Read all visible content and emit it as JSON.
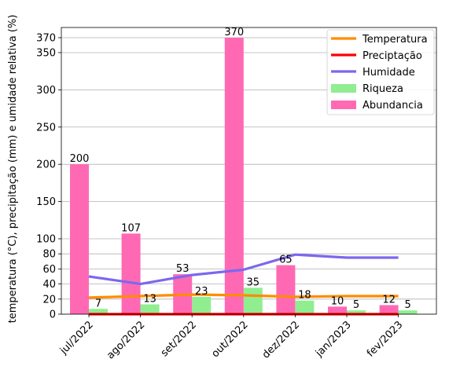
{
  "chart_data": {
    "type": "bar",
    "ylabel": "temperatura (°C), precipitação (mm) e umidade relativa (%)",
    "xlabel": "",
    "title": "",
    "categories": [
      "jul/2022",
      "ago/2022",
      "set/2022",
      "out/2022",
      "dez/2022",
      "jan/2023",
      "fev/2023"
    ],
    "y_ticks": [
      0,
      20,
      40,
      60,
      80,
      100,
      150,
      200,
      250,
      300,
      350,
      370
    ],
    "y_axis_note": "piecewise linear scale: 0–100 and 100–370 segments",
    "grid": true,
    "legend_position": "top-right",
    "bar_series": [
      {
        "name": "Riqueza",
        "color": "#90EE90",
        "values": [
          7,
          13,
          23,
          35,
          18,
          5,
          5
        ],
        "labels": [
          "7",
          "13",
          "23",
          "35",
          "18",
          "5",
          "5"
        ]
      },
      {
        "name": "Abundancia",
        "color": "#FF69B4",
        "values": [
          200,
          107,
          53,
          370,
          65,
          10,
          12
        ],
        "labels": [
          "200",
          "107",
          "53",
          "370",
          "65",
          "10",
          "12"
        ]
      }
    ],
    "line_series": [
      {
        "name": "Temperatura",
        "color": "#FF8C00",
        "values": [
          22,
          24,
          26,
          25,
          23,
          24,
          24
        ]
      },
      {
        "name": "Preciptação",
        "color": "#FF0000",
        "values": [
          0,
          0,
          0,
          0,
          0,
          0,
          0
        ]
      },
      {
        "name": "Humidade",
        "color": "#7B68EE",
        "values": [
          50,
          40,
          52,
          59,
          79,
          75,
          75
        ]
      }
    ],
    "legend": [
      {
        "name": "Temperatura",
        "kind": "line",
        "color": "#FF8C00"
      },
      {
        "name": "Preciptação",
        "kind": "line",
        "color": "#FF0000"
      },
      {
        "name": "Humidade",
        "kind": "line",
        "color": "#7B68EE"
      },
      {
        "name": "Riqueza",
        "kind": "bar",
        "color": "#90EE90"
      },
      {
        "name": "Abundancia",
        "kind": "bar",
        "color": "#FF69B4"
      }
    ]
  }
}
